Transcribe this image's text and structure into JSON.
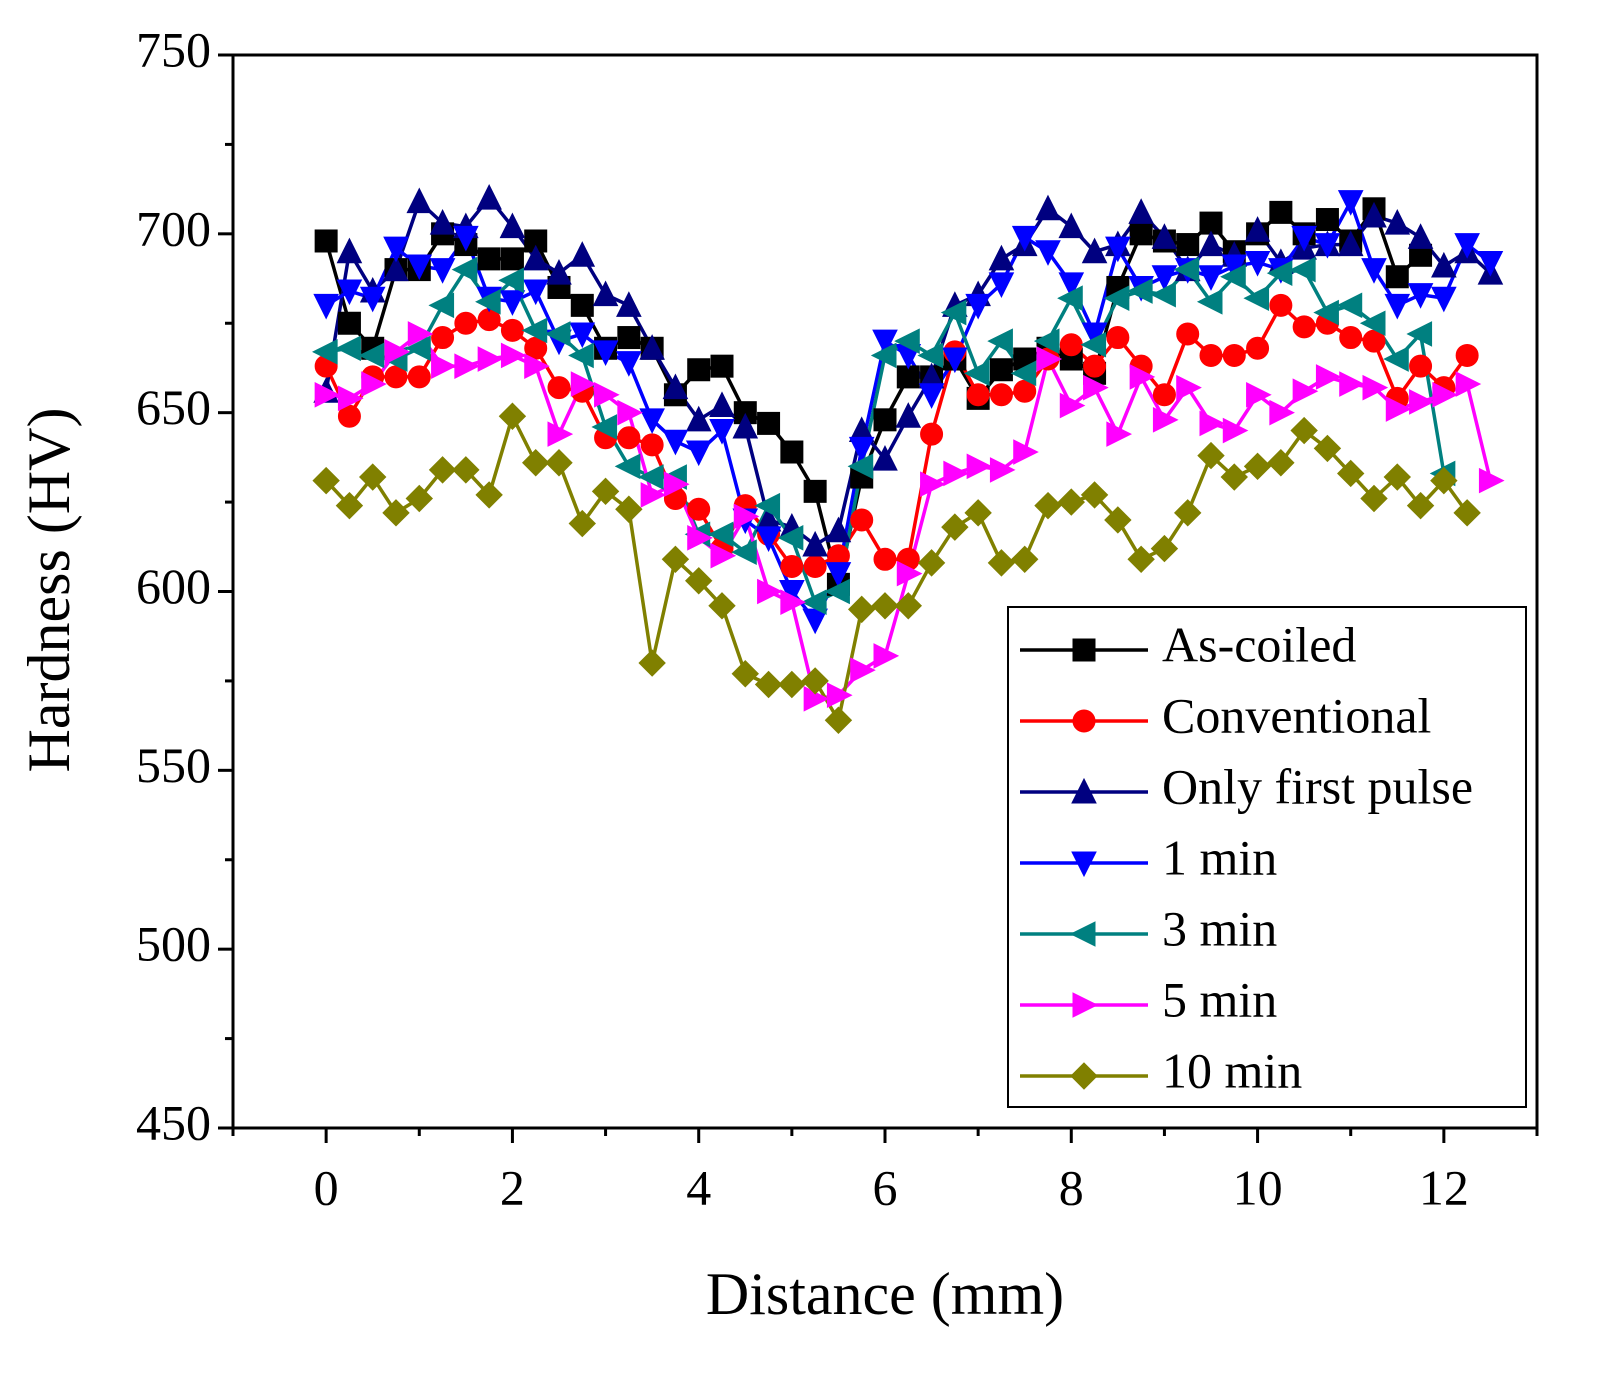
{
  "chart_data": {
    "type": "line",
    "xlabel": "Distance (mm)",
    "ylabel": "Hardness (HV)",
    "xlim": [
      -1,
      13
    ],
    "ylim": [
      450,
      750
    ],
    "xticks": [
      0,
      2,
      4,
      6,
      8,
      10,
      12
    ],
    "yticks": [
      450,
      500,
      550,
      600,
      650,
      700,
      750
    ],
    "xminorticks": [
      -1,
      1,
      3,
      5,
      7,
      9,
      11,
      13
    ],
    "yminorticks": [
      475,
      525,
      575,
      625,
      675,
      725
    ],
    "legend": "lower right",
    "x": [
      0,
      0.25,
      0.5,
      0.75,
      1,
      1.25,
      1.5,
      1.75,
      2,
      2.25,
      2.5,
      2.75,
      3,
      3.25,
      3.5,
      3.75,
      4,
      4.25,
      4.5,
      4.75,
      5,
      5.25,
      5.5,
      5.75,
      6,
      6.25,
      6.5,
      6.75,
      7,
      7.25,
      7.5,
      7.75,
      8,
      8.25,
      8.5,
      8.75,
      9,
      9.25,
      9.5,
      9.75,
      10,
      10.25,
      10.5,
      10.75,
      11,
      11.25,
      11.5,
      11.75,
      12,
      12.25,
      12.5
    ],
    "series": [
      {
        "name": "As-coiled",
        "color": "#000000",
        "marker": "square",
        "values": [
          698,
          675,
          668,
          690,
          690,
          700,
          697,
          693,
          693,
          698,
          685,
          680,
          668,
          671,
          668,
          655,
          662,
          663,
          650,
          647,
          639,
          628,
          602,
          632,
          648,
          660,
          660,
          665,
          654,
          662,
          665,
          668,
          665,
          661,
          685,
          700,
          698,
          697,
          703,
          695,
          700,
          706,
          700,
          704,
          698,
          707,
          688,
          694,
          null,
          null,
          null
        ]
      },
      {
        "name": "Conventional",
        "color": "#ff0000",
        "marker": "circle",
        "values": [
          663,
          649,
          660,
          660,
          660,
          671,
          675,
          676,
          673,
          668,
          657,
          656,
          643,
          643,
          641,
          626,
          623,
          612,
          624,
          616,
          607,
          607,
          610,
          620,
          609,
          609,
          644,
          667,
          655,
          655,
          656,
          665,
          669,
          663,
          671,
          663,
          655,
          672,
          666,
          666,
          668,
          680,
          674,
          675,
          671,
          670,
          654,
          663,
          657,
          666,
          null
        ]
      },
      {
        "name": "Only first pulse",
        "color": "#000080",
        "marker": "triangle-up",
        "values": [
          656,
          695,
          684,
          690,
          709,
          703,
          702,
          710,
          702,
          693,
          689,
          694,
          683,
          680,
          668,
          657,
          648,
          652,
          646,
          620,
          618,
          613,
          617,
          645,
          637,
          649,
          660,
          680,
          683,
          693,
          697,
          707,
          702,
          695,
          697,
          706,
          699,
          690,
          697,
          694,
          701,
          692,
          696,
          697,
          697,
          705,
          703,
          699,
          691,
          695,
          689
        ]
      },
      {
        "name": "1 min",
        "color": "#0000ff",
        "marker": "triangle-down",
        "values": [
          680,
          684,
          682,
          696,
          691,
          690,
          699,
          682,
          681,
          684,
          670,
          672,
          667,
          664,
          648,
          642,
          639,
          645,
          620,
          615,
          600,
          592,
          605,
          640,
          670,
          666,
          655,
          665,
          680,
          686,
          699,
          695,
          686,
          672,
          696,
          685,
          688,
          690,
          688,
          691,
          692,
          690,
          699,
          697,
          709,
          690,
          680,
          683,
          682,
          697,
          692
        ]
      },
      {
        "name": "3 min",
        "color": "#008080",
        "marker": "triangle-left",
        "values": [
          667,
          668,
          666,
          665,
          668,
          680,
          690,
          681,
          687,
          673,
          672,
          666,
          646,
          635,
          632,
          632,
          616,
          616,
          611,
          624,
          615,
          597,
          600,
          635,
          666,
          670,
          666,
          678,
          661,
          670,
          661,
          670,
          682,
          669,
          682,
          684,
          683,
          690,
          681,
          688,
          682,
          689,
          690,
          678,
          680,
          675,
          665,
          672,
          633,
          null,
          null
        ]
      },
      {
        "name": "5 min",
        "color": "#ff00ff",
        "marker": "triangle-right",
        "values": [
          655,
          654,
          658,
          667,
          672,
          663,
          663,
          665,
          666,
          663,
          644,
          658,
          655,
          650,
          627,
          630,
          615,
          610,
          621,
          600,
          597,
          570,
          571,
          578,
          582,
          605,
          630,
          633,
          635,
          634,
          639,
          665,
          652,
          657,
          644,
          660,
          648,
          657,
          647,
          645,
          655,
          650,
          656,
          660,
          658,
          657,
          651,
          653,
          655,
          658,
          631
        ]
      },
      {
        "name": "10 min",
        "color": "#808000",
        "marker": "diamond",
        "values": [
          631,
          624,
          632,
          622,
          626,
          634,
          634,
          627,
          649,
          636,
          636,
          619,
          628,
          623,
          580,
          609,
          603,
          596,
          577,
          574,
          574,
          575,
          564,
          595,
          596,
          596,
          608,
          618,
          622,
          608,
          609,
          624,
          625,
          627,
          620,
          609,
          612,
          622,
          638,
          632,
          635,
          636,
          645,
          640,
          633,
          626,
          632,
          624,
          631,
          622,
          null
        ]
      }
    ]
  }
}
